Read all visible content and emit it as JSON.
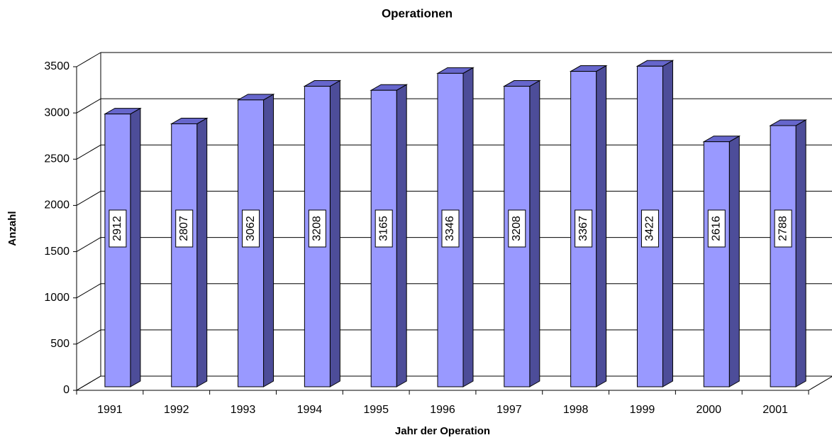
{
  "chart_data": {
    "type": "bar",
    "title": "Operationen",
    "x_label": "Jahr der Operation",
    "y_label": "Anzahl",
    "categories": [
      "1991",
      "1992",
      "1993",
      "1994",
      "1995",
      "1996",
      "1997",
      "1998",
      "1999",
      "2000",
      "2001"
    ],
    "values": [
      2912,
      2807,
      3062,
      3208,
      3165,
      3346,
      3208,
      3367,
      3422,
      2616,
      2788
    ],
    "color": "#9999ff",
    "ylim": [
      0,
      3500
    ],
    "yticks": [
      0,
      500,
      1000,
      1500,
      2000,
      2500,
      3000,
      3500
    ],
    "grid": true
  }
}
